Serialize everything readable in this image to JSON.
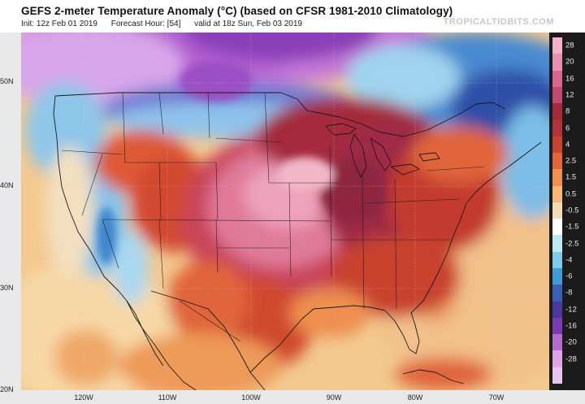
{
  "header": {
    "title": "GEFS 2-meter Temperature Anomaly (°C) (based on CFSR 1981-2010 Climatology)",
    "init": "Init: 12z Feb 01 2019",
    "forecast_hour": "Forecast Hour: [54]",
    "valid": "valid at 18z Sun, Feb 03 2019",
    "brand": "TROPICALTIDBITS.COM"
  },
  "map": {
    "lat_labels": [
      "50N",
      "40N",
      "30N",
      "20N"
    ],
    "lon_labels": [
      "120W",
      "110W",
      "100W",
      "90W",
      "80W",
      "70W"
    ]
  },
  "colorbar": {
    "labels": [
      "28",
      "20",
      "16",
      "12",
      "8",
      "6",
      "4",
      "2.5",
      "1.5",
      "0.5",
      "-0.5",
      "-1.5",
      "-2.5",
      "-4",
      "-6",
      "-8",
      "-12",
      "-16",
      "-20",
      "-28"
    ],
    "colors": [
      "#f2b2c8",
      "#e890b0",
      "#d9668e",
      "#c04a70",
      "#a42a3a",
      "#b2323a",
      "#c8432e",
      "#e0653a",
      "#ee8f50",
      "#f6b878",
      "#f6dcb4",
      "#ffffff",
      "#bfe7f2",
      "#7fcbe8",
      "#3f9dd6",
      "#3a5fb6",
      "#4a3a9e",
      "#7a3ab0",
      "#b56ad0",
      "#dda5e6",
      "#e8c4f0"
    ]
  }
}
